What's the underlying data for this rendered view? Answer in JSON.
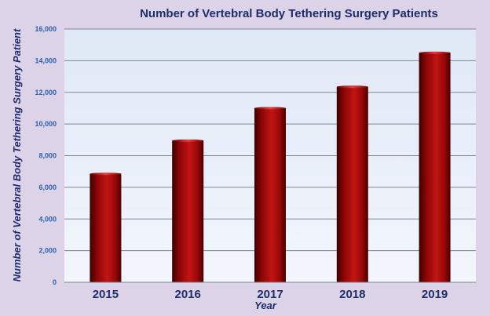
{
  "chart_data": {
    "type": "bar",
    "title": "Number of Vertebral Body Tethering Surgery Patients",
    "xlabel": "Year",
    "ylabel": "Number of Vertebral Body Tethering Surgery Patient",
    "categories": [
      "2015",
      "2016",
      "2017",
      "2018",
      "2019"
    ],
    "values": [
      6850,
      8950,
      11000,
      12350,
      14500
    ],
    "ylim": [
      0,
      16000
    ],
    "yticks": [
      "0",
      "2,000",
      "4,000",
      "6,000",
      "8,000",
      "10,000",
      "12,000",
      "14,000",
      "16,000"
    ],
    "grid": true,
    "colors": {
      "bar_dark": "#4a0000",
      "bar_mid": "#b00a0a",
      "bar_light": "#e03030",
      "plot_bg_top": "#dfe8f6",
      "plot_bg_bottom": "#f3f6fc",
      "grid": "#7f8792",
      "text": "#1f2d6b",
      "tick_text": "#2a5fb0",
      "page_bg": "#ddd3e8"
    }
  }
}
